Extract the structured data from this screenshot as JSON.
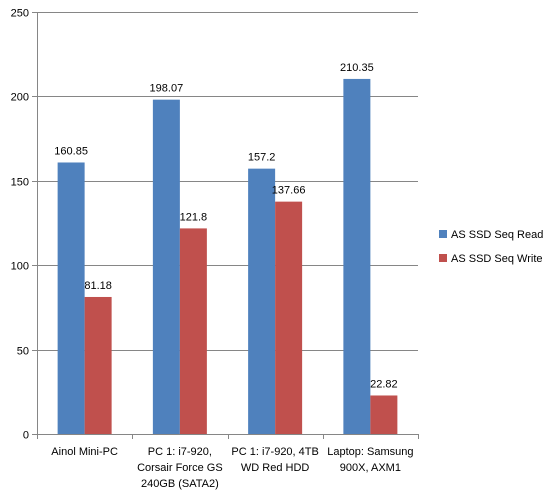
{
  "chart_data": {
    "type": "bar",
    "title": "",
    "xlabel": "",
    "ylabel": "",
    "ylim": [
      0,
      250
    ],
    "yticks": [
      0,
      50,
      100,
      150,
      200,
      250
    ],
    "grid": true,
    "legend_position": "right",
    "categories": [
      [
        "Ainol Mini-PC"
      ],
      [
        "PC 1: i7-920,",
        "Corsair Force GS",
        "240GB (SATA2)"
      ],
      [
        "PC 1: i7-920, 4TB",
        "WD Red HDD"
      ],
      [
        "Laptop: Samsung",
        "900X, AXM1"
      ]
    ],
    "series": [
      {
        "name": "AS SSD Seq Read",
        "color": "#4F81BD",
        "values": [
          160.85,
          198.07,
          157.2,
          210.35
        ],
        "labels": [
          "160.85",
          "198.07",
          "157.2",
          "210.35"
        ]
      },
      {
        "name": "AS SSD Seq Write",
        "color": "#C0504D",
        "values": [
          81.18,
          121.8,
          137.66,
          22.82
        ],
        "labels": [
          "81.18",
          "121.8",
          "137.66",
          "22.82"
        ]
      }
    ]
  }
}
